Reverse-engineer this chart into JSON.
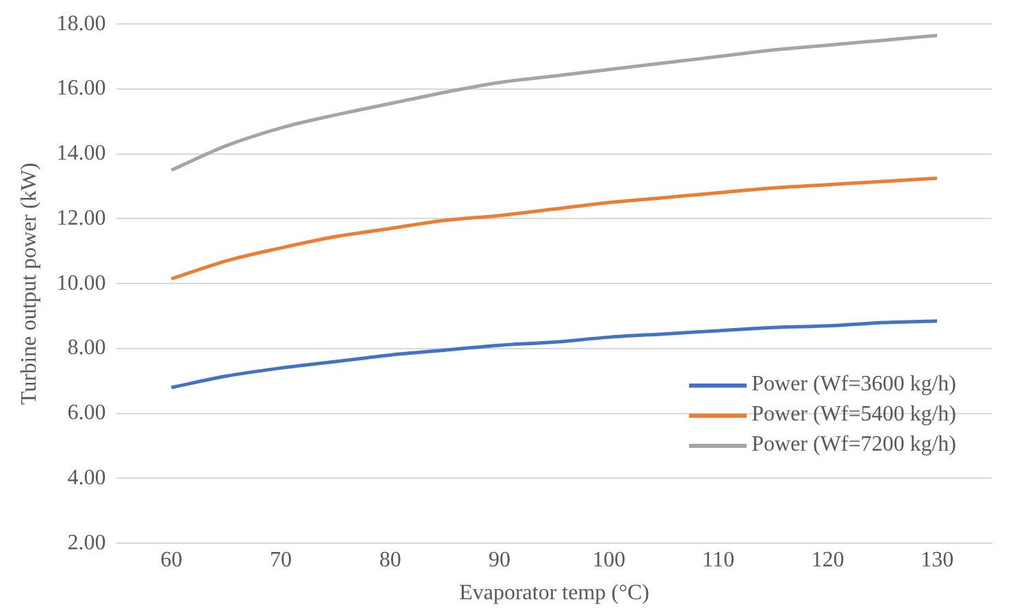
{
  "chart_data": {
    "type": "line",
    "xlabel": "Evaporator temp (°C)",
    "ylabel": "Turbine output power (kW)",
    "x": [
      60,
      65,
      70,
      75,
      80,
      85,
      90,
      95,
      100,
      105,
      110,
      115,
      120,
      125,
      130
    ],
    "series": [
      {
        "name": "Power (Wf=3600 kg/h)",
        "color": "#4472c4",
        "values": [
          6.8,
          7.15,
          7.4,
          7.6,
          7.8,
          7.95,
          8.1,
          8.2,
          8.35,
          8.45,
          8.55,
          8.65,
          8.7,
          8.8,
          8.85
        ]
      },
      {
        "name": "Power (Wf=5400 kg/h)",
        "color": "#ed7d31",
        "values": [
          10.15,
          10.7,
          11.1,
          11.45,
          11.7,
          11.95,
          12.1,
          12.3,
          12.5,
          12.65,
          12.8,
          12.95,
          13.05,
          13.15,
          13.25
        ]
      },
      {
        "name": "Power (Wf=7200 kg/h)",
        "color": "#a5a5a5",
        "values": [
          13.5,
          14.25,
          14.8,
          15.2,
          15.55,
          15.9,
          16.2,
          16.4,
          16.6,
          16.8,
          17.0,
          17.2,
          17.35,
          17.5,
          17.65
        ]
      }
    ],
    "xlim": [
      55,
      135
    ],
    "xticks": [
      60,
      70,
      80,
      90,
      100,
      110,
      120,
      130
    ],
    "ylim": [
      2,
      18
    ],
    "yticks": [
      {
        "value": 2,
        "label": "2.00"
      },
      {
        "value": 4,
        "label": "4.00"
      },
      {
        "value": 6,
        "label": "6.00"
      },
      {
        "value": 8,
        "label": "8.00"
      },
      {
        "value": 10,
        "label": "10.00"
      },
      {
        "value": 12,
        "label": "12.00"
      },
      {
        "value": 14,
        "label": "14.00"
      },
      {
        "value": 16,
        "label": "16.00"
      },
      {
        "value": 18,
        "label": "18.00"
      }
    ],
    "grid": "y",
    "legend": "bottom right",
    "marker": "none",
    "line_style": "solid"
  }
}
